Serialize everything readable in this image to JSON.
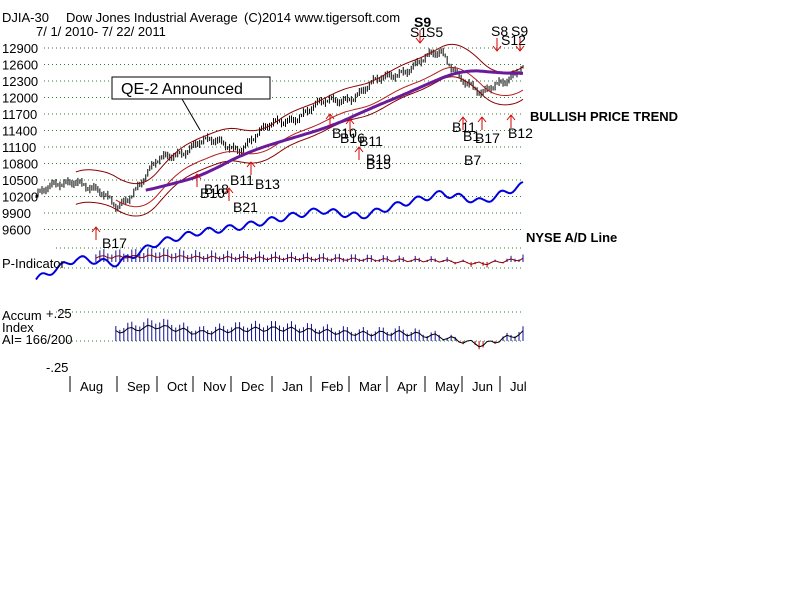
{
  "header": {
    "symbol": "DJIA-30",
    "name": "Dow Jones Industrial Average",
    "copyright": "(C)2014 www.tigersoft.com",
    "date_range": "7/ 1/ 2010- 7/ 22/ 2011"
  },
  "colors": {
    "price_bars": "#000000",
    "band": "#8b0000",
    "moving_average": "#6a1b9a",
    "ad_line": "#0000dd",
    "positive_bars": "#1010a0",
    "negative_bars": "#c00000",
    "grid": "#2e7d32",
    "buy_arrow": "#d00000",
    "sell_arrow": "#d00000"
  },
  "annotations": {
    "qe2": "QE-2 Announced",
    "trend": "BULLISH PRICE TREND",
    "ad_line": "NYSE A/D Line",
    "p_indicator": "P-Indicator",
    "accum_line1": "Accum",
    "accum_line2": "Index",
    "accum_line3": "AI= 166/200",
    "accum_top": "+.25",
    "accum_bottom": "-.25"
  },
  "signals": [
    {
      "label": "B17"
    },
    {
      "label": "B18"
    },
    {
      "label": "B10"
    },
    {
      "label": "B21"
    },
    {
      "label": "B11"
    },
    {
      "label": "B13"
    },
    {
      "label": "B10"
    },
    {
      "label": "B16"
    },
    {
      "label": "B11"
    },
    {
      "label": "B19"
    },
    {
      "label": "B15"
    },
    {
      "label": "S9"
    },
    {
      "label": "S1"
    },
    {
      "label": "S5"
    },
    {
      "label": "B11"
    },
    {
      "label": "B1"
    },
    {
      "label": "B17"
    },
    {
      "label": "B7"
    },
    {
      "label": "S8"
    },
    {
      "label": "S9"
    },
    {
      "label": "S12"
    },
    {
      "label": "B12"
    }
  ],
  "chart_data": {
    "type": "line",
    "title": "Dow Jones Industrial Average",
    "y_ticks": [
      12900,
      12600,
      12300,
      12000,
      11700,
      11400,
      11100,
      10800,
      10500,
      10200,
      9900,
      9600
    ],
    "y_tick_labels": [
      "12900",
      "12600",
      "12300",
      "12000",
      "11700",
      "11400",
      "11100",
      "10800",
      "10500",
      "10200",
      "9900",
      "9600"
    ],
    "x_labels": [
      "Aug",
      "Sep",
      "Oct",
      "Nov",
      "Dec",
      "Jan",
      "Feb",
      "Mar",
      "Apr",
      "May",
      "Jun",
      "Jul"
    ],
    "ylim": [
      9600,
      12900
    ],
    "grid": true,
    "series": [
      {
        "name": "DJIA-30",
        "x": [
          "2010-07",
          "2010-08",
          "2010-09",
          "2010-10",
          "2010-11",
          "2010-12",
          "2011-01",
          "2011-02",
          "2011-03",
          "2011-04",
          "2011-05",
          "2011-06",
          "2011-07"
        ],
        "values": [
          10200,
          10550,
          10000,
          10800,
          11200,
          11100,
          11550,
          11850,
          12100,
          12500,
          12800,
          12000,
          12600
        ]
      },
      {
        "name": "NYSE A/D Line",
        "x": [
          "2010-07",
          "2010-08",
          "2010-09",
          "2010-10",
          "2010-11",
          "2010-12",
          "2011-01",
          "2011-02",
          "2011-03",
          "2011-04",
          "2011-05",
          "2011-06",
          "2011-07"
        ],
        "values": [
          10,
          30,
          25,
          45,
          55,
          60,
          68,
          76,
          70,
          82,
          92,
          84,
          100
        ]
      }
    ],
    "p_indicator": {
      "values": [
        40,
        60,
        55,
        65,
        50,
        45,
        40,
        35,
        30,
        20,
        15,
        -20,
        35
      ]
    },
    "accum_index": {
      "ylim": [
        -0.25,
        0.25
      ],
      "values": [
        0.05,
        0.15,
        0.12,
        0.18,
        0.1,
        0.14,
        0.15,
        0.12,
        0.09,
        0.1,
        0.05,
        -0.05,
        0.1
      ]
    }
  }
}
